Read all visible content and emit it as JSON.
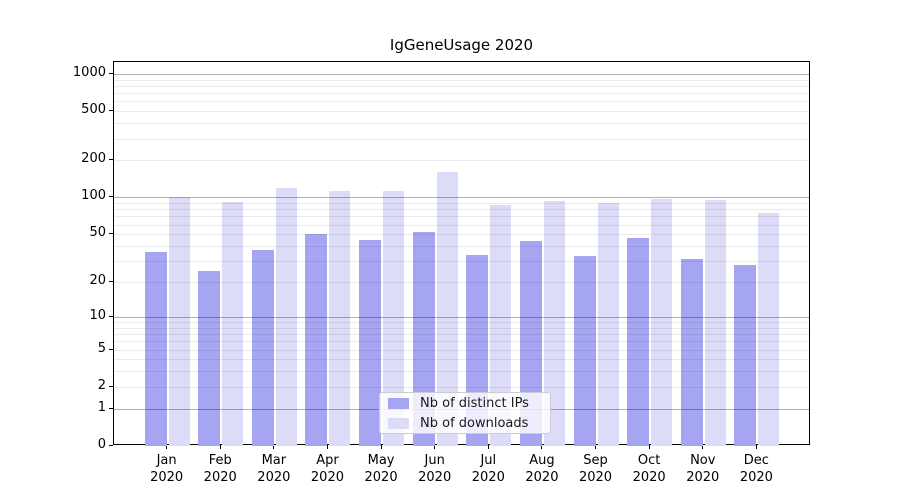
{
  "title": "IgGeneUsage 2020",
  "chart_data": {
    "type": "bar",
    "title": "IgGeneUsage 2020",
    "categories": [
      "Jan",
      "Feb",
      "Mar",
      "Apr",
      "May",
      "Jun",
      "Jul",
      "Aug",
      "Sep",
      "Oct",
      "Nov",
      "Dec"
    ],
    "year": "2020",
    "series": [
      {
        "name": "Nb of distinct IPs",
        "color": "#a5a5f2",
        "values": [
          36,
          25,
          37,
          50,
          45,
          52,
          34,
          44,
          33,
          47,
          31,
          28
        ]
      },
      {
        "name": "Nb of downloads",
        "color": "#dcdcf9",
        "values": [
          101,
          91,
          119,
          112,
          113,
          162,
          86,
          93,
          90,
          97,
          96,
          75
        ]
      }
    ],
    "xlabel": "",
    "ylabel": "",
    "yscale": "log1p",
    "y_ticks": [
      1000,
      500,
      200,
      100,
      50,
      20,
      10,
      5,
      2,
      1,
      0
    ],
    "ylim": [
      0,
      1250
    ],
    "grid": "horizontal major+minor",
    "legend_position": "lower center"
  }
}
